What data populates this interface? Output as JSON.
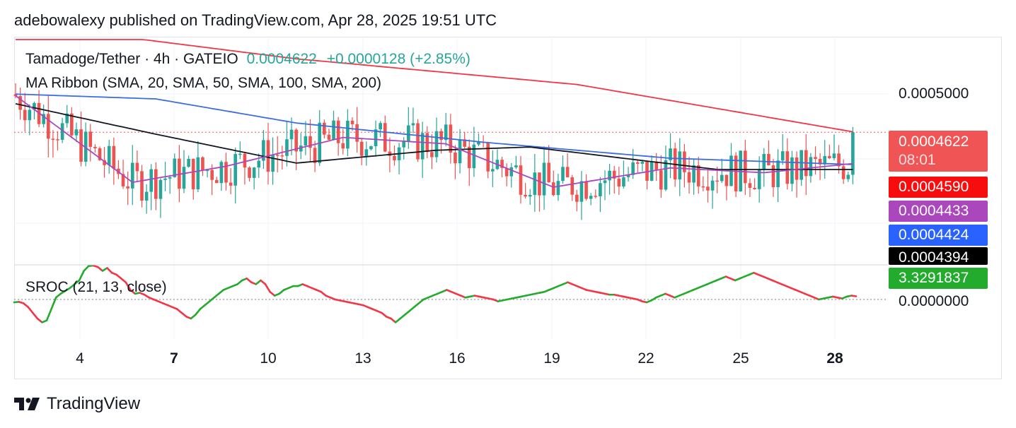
{
  "header": {
    "publisher_text": "adebowalexy published on TradingView.com, Apr 28, 2025 19:51 UTC"
  },
  "legend": {
    "symbol_line": "Tamadoge/Tether · 4h · GATEIO",
    "last_value": "0.0004622",
    "change": "+0.0000128 (+2.85%)",
    "ma_ribbon": "MA Ribbon (SMA, 20, SMA, 50, SMA, 100, SMA, 200)",
    "sroc": "SROC (21, 13, close)"
  },
  "price_axis": {
    "tick_upper": "0.0005000",
    "tick_zero": "0.0000000"
  },
  "badges": {
    "last_price": "0.0004622",
    "countdown": "08:01",
    "sma200": "0.0004590",
    "sma20": "0.0004433",
    "sma50": "0.0004424",
    "sma100": "0.0004394",
    "sroc": "3.3291837"
  },
  "colors": {
    "up": "#26a69a",
    "down": "#ef5350",
    "sma20": "#ab47bc",
    "sma50": "#3d6de0",
    "sma100": "#131722",
    "sma200": "#f23645",
    "sroc_up": "#22ab2c",
    "sroc_down": "#f23645",
    "last_badge": "#f05454",
    "sma200_badge": "#f70d0d",
    "sma20_badge": "#ab47bc",
    "sma50_badge": "#2962ff",
    "sma100_badge": "#000000",
    "sroc_badge": "#22ab2c"
  },
  "x_axis": [
    "4",
    "7",
    "10",
    "13",
    "16",
    "19",
    "22",
    "25",
    "28"
  ],
  "footer": {
    "brand": "TradingView",
    "logo_icon": "tradingview-logo-icon"
  },
  "chart_data": [
    {
      "type": "candlestick",
      "title": "Tamadoge/Tether · 4h · GATEIO",
      "ylim": [
        0.00038,
        0.00052
      ],
      "x_ticks": [
        "4",
        "7",
        "10",
        "13",
        "16",
        "19",
        "22",
        "25",
        "28"
      ],
      "last_price": 0.0004622,
      "candle_count": 180,
      "series": [
        {
          "name": "SMA 20",
          "last": 0.0004433
        },
        {
          "name": "SMA 50",
          "last": 0.0004424
        },
        {
          "name": "SMA 100",
          "last": 0.0004394
        },
        {
          "name": "SMA 200",
          "last": 0.000459
        }
      ],
      "ma_shape": {
        "sma200": [
          [
            0,
            0.00053
          ],
          [
            60,
            0.000508
          ],
          [
            120,
            0.000492
          ],
          [
            180,
            0.000462
          ]
        ],
        "sma50": [
          [
            0,
            0.000486
          ],
          [
            30,
            0.000483
          ],
          [
            60,
            0.000468
          ],
          [
            100,
            0.000456
          ],
          [
            140,
            0.000446
          ],
          [
            180,
            0.000442
          ]
        ],
        "sma100": [
          [
            0,
            0.00048
          ],
          [
            30,
            0.000461
          ],
          [
            60,
            0.000443
          ],
          [
            90,
            0.000451
          ],
          [
            110,
            0.000453
          ],
          [
            150,
            0.000439
          ],
          [
            180,
            0.000439
          ]
        ],
        "sma20": [
          [
            0,
            0.000485
          ],
          [
            25,
            0.000431
          ],
          [
            45,
            0.000441
          ],
          [
            70,
            0.000459
          ],
          [
            92,
            0.000455
          ],
          [
            115,
            0.000428
          ],
          [
            140,
            0.00044
          ],
          [
            160,
            0.000437
          ],
          [
            180,
            0.000443
          ]
        ]
      }
    },
    {
      "type": "line",
      "title": "SROC (21, 13, close)",
      "zero_line": 0,
      "last_value": 3.3291837,
      "values": [
        -3,
        -2.5,
        -4,
        -8,
        -14,
        -20,
        -24,
        -22,
        -10,
        2,
        6,
        9,
        12,
        16,
        20,
        30,
        35,
        38,
        34,
        30,
        33,
        28,
        26,
        22,
        18,
        10,
        6,
        7,
        5,
        2,
        0,
        -2,
        -4,
        -6,
        -8,
        -10,
        -14,
        -18,
        -20,
        -16,
        -10,
        -6,
        -2,
        2,
        6,
        10,
        12,
        14,
        16,
        20,
        22,
        18,
        16,
        20,
        16,
        8,
        4,
        6,
        10,
        12,
        14,
        14,
        16,
        14,
        12,
        10,
        8,
        4,
        2,
        0,
        -1,
        -2,
        -3,
        -4,
        -5,
        -6,
        -8,
        -10,
        -12,
        -14,
        -18,
        -20,
        -24,
        -20,
        -16,
        -12,
        -8,
        -4,
        0,
        2,
        4,
        6,
        8,
        10,
        8,
        6,
        4,
        2,
        3,
        4,
        3,
        2,
        1,
        0,
        -2,
        -1,
        0,
        1,
        2,
        3,
        4,
        5,
        6,
        7,
        8,
        10,
        12,
        14,
        16,
        18,
        16,
        14,
        12,
        10,
        9,
        8,
        7,
        6,
        5,
        5,
        4,
        3,
        2,
        1,
        0,
        -2,
        -3,
        -1,
        2,
        4,
        6,
        4,
        2,
        4,
        6,
        8,
        10,
        12,
        14,
        16,
        18,
        20,
        22,
        24,
        22,
        20,
        22,
        24,
        26,
        28,
        26,
        24,
        22,
        20,
        18,
        16,
        14,
        12,
        10,
        8,
        6,
        4,
        2,
        0,
        1,
        2,
        3,
        2,
        1,
        3,
        4,
        3.3291837
      ]
    }
  ]
}
